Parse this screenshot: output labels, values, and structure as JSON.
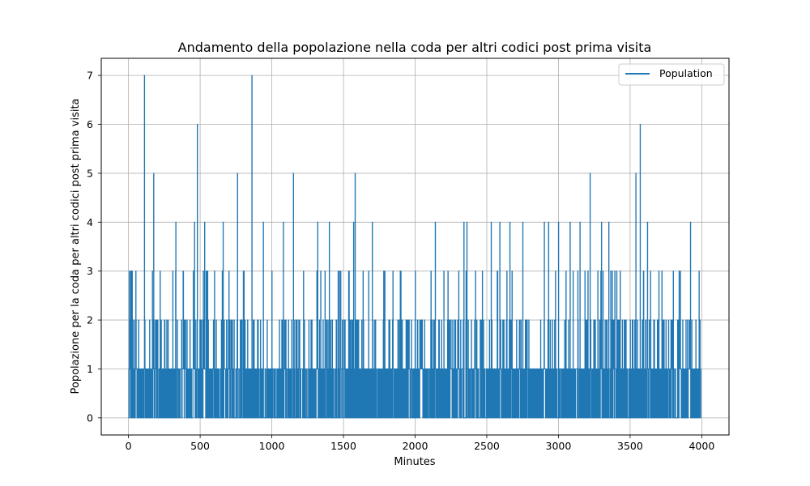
{
  "chart_data": {
    "type": "line",
    "title": "Andamento della popolazione nella coda per altri codici post prima visita",
    "xlabel": "Minutes",
    "ylabel": "Popolazione per la coda per altri codici post prima visita",
    "xlim": [
      -190,
      4190
    ],
    "ylim": [
      -0.35,
      7.35
    ],
    "xticks": [
      0,
      500,
      1000,
      1500,
      2000,
      2500,
      3000,
      3500,
      4000
    ],
    "yticks": [
      0,
      1,
      2,
      3,
      4,
      5,
      6,
      7
    ],
    "grid": true,
    "legend_position": "top-right",
    "series": [
      {
        "name": "Population",
        "color": "#1f77b4",
        "step": true,
        "peaks": [
          [
            0,
            1
          ],
          [
            25,
            3
          ],
          [
            50,
            3
          ],
          [
            110,
            7
          ],
          [
            175,
            5
          ],
          [
            220,
            3
          ],
          [
            330,
            4
          ],
          [
            380,
            3
          ],
          [
            460,
            4
          ],
          [
            480,
            6
          ],
          [
            530,
            4
          ],
          [
            600,
            3
          ],
          [
            660,
            4
          ],
          [
            700,
            3
          ],
          [
            760,
            5
          ],
          [
            800,
            3
          ],
          [
            860,
            7
          ],
          [
            940,
            4
          ],
          [
            1000,
            3
          ],
          [
            1080,
            4
          ],
          [
            1150,
            5
          ],
          [
            1220,
            3
          ],
          [
            1320,
            4
          ],
          [
            1400,
            4
          ],
          [
            1480,
            3
          ],
          [
            1570,
            4
          ],
          [
            1580,
            5
          ],
          [
            1700,
            4
          ],
          [
            1780,
            3
          ],
          [
            1900,
            3
          ],
          [
            2000,
            3
          ],
          [
            2140,
            4
          ],
          [
            2200,
            3
          ],
          [
            2340,
            4
          ],
          [
            2360,
            4
          ],
          [
            2420,
            3
          ],
          [
            2530,
            4
          ],
          [
            2590,
            4
          ],
          [
            2660,
            4
          ],
          [
            2750,
            4
          ],
          [
            2900,
            4
          ],
          [
            2930,
            4
          ],
          [
            3000,
            4
          ],
          [
            3080,
            4
          ],
          [
            3150,
            4
          ],
          [
            3220,
            5
          ],
          [
            3300,
            4
          ],
          [
            3350,
            4
          ],
          [
            3430,
            3
          ],
          [
            3500,
            2
          ],
          [
            3540,
            5
          ],
          [
            3570,
            6
          ],
          [
            3620,
            4
          ],
          [
            3700,
            3
          ],
          [
            3800,
            3
          ],
          [
            3850,
            3
          ],
          [
            3920,
            4
          ],
          [
            3980,
            3
          ],
          [
            3995,
            1
          ]
        ]
      }
    ]
  }
}
